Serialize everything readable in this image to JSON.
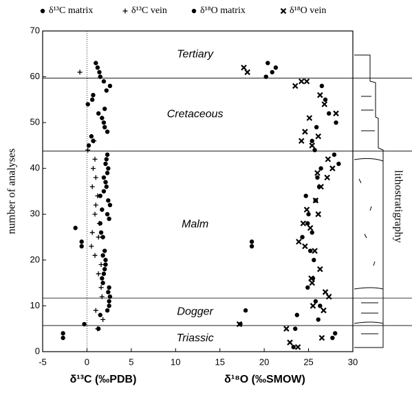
{
  "chart_data": {
    "type": "scatter",
    "xlabels": [
      "δ¹³C (‰PDB)",
      "δ¹⁸O (‰SMOW)"
    ],
    "ylabel": "number of analyses",
    "right_label": "lithostratigraphy",
    "xlim": [
      -5,
      30
    ],
    "xticks": [
      -5,
      0,
      5,
      10,
      15,
      20,
      25,
      30
    ],
    "ylim": [
      0,
      70
    ],
    "yticks": [
      0,
      10,
      20,
      30,
      40,
      50,
      60,
      70
    ],
    "boundaries": [
      59.7,
      43.8,
      11.7,
      5.7
    ],
    "periods": [
      "Tertiary",
      "Cretaceous",
      "Malm",
      "Dogger",
      "Triassic"
    ],
    "series": [
      {
        "name": "δ¹³C matrix",
        "marker": "circle",
        "color": "#000",
        "x": [
          -2.7,
          -2.7,
          1.3,
          -0.3,
          1.5,
          2.3,
          2.5,
          2.5,
          2.6,
          2.4,
          2.5,
          1.8,
          1.7,
          1.9,
          2.0,
          2.1,
          2.1,
          1.8,
          2.0,
          -0.6,
          -0.6,
          1.8,
          1.6,
          -1.3,
          1.5,
          2.5,
          2.3,
          1.7,
          2.6,
          2.4,
          1.5,
          1.9,
          2.2,
          2.1,
          1.9,
          2.3,
          2.4,
          2.1,
          2.2,
          2.3,
          0.2,
          0.7,
          0.5,
          2.3,
          2.0,
          1.9,
          1.7,
          1.3,
          2.0,
          0.1,
          0.6,
          0.7,
          2.2,
          2.6,
          1.9,
          1.5,
          1.4,
          1.2,
          1.0
        ],
        "y": [
          3,
          4,
          5,
          6,
          8,
          9,
          10,
          11,
          12,
          13,
          14,
          15,
          16,
          17,
          18,
          19,
          20,
          21,
          22,
          23,
          24,
          25,
          26,
          27,
          28,
          29,
          30,
          31,
          32,
          33,
          34,
          35,
          36,
          37,
          38,
          39,
          40,
          41,
          42,
          43,
          45,
          46,
          47,
          48,
          49,
          50,
          51,
          52,
          53,
          54,
          55,
          56,
          57,
          58,
          59,
          60,
          61,
          62,
          63
        ]
      },
      {
        "name": "δ¹³C vein",
        "marker": "plus",
        "color": "#000",
        "x": [
          -0.8,
          0.1,
          0.8,
          0.9,
          0.7,
          1.0,
          0.6,
          1.2,
          1.0,
          0.9,
          1.4,
          0.6,
          1.3,
          0.5,
          0.9,
          1.6,
          1.3,
          1.6,
          1.7,
          1.0,
          1.8,
          1.2
        ],
        "y": [
          61,
          44,
          46,
          42,
          40,
          38,
          36,
          34,
          32,
          30,
          28,
          26,
          25,
          23,
          21,
          19,
          17,
          14,
          12,
          9,
          7,
          5
        ]
      },
      {
        "name": "δ¹⁸O matrix",
        "marker": "circle",
        "color": "#000",
        "x": [
          17.9,
          17.3,
          18.6,
          18.6,
          20.4,
          21.3,
          20.9,
          20.2,
          23.5,
          23.3,
          23.7,
          24.7,
          24.9,
          25.0,
          25.4,
          25.6,
          25.5,
          25.8,
          26.1,
          26.3,
          25.7,
          25.4,
          25.9,
          26.5,
          26.9,
          27.3,
          28.1,
          28.0,
          27.7,
          28.4,
          27.9,
          26.0,
          26.2,
          25.8,
          26.4,
          25.2,
          24.9,
          24.3
        ],
        "y": [
          9,
          6,
          24,
          23,
          63,
          62,
          61,
          60,
          5,
          1,
          8,
          34,
          28,
          30,
          26,
          20,
          16,
          11,
          7,
          10,
          44,
          46,
          49,
          58,
          55,
          52,
          50,
          4,
          3,
          41,
          43,
          38,
          36,
          33,
          40,
          22,
          14,
          25
        ]
      },
      {
        "name": "δ¹⁸O vein",
        "marker": "cross",
        "color": "#000",
        "x": [
          17.7,
          18.1,
          17.2,
          22.5,
          22.9,
          23.8,
          24.2,
          24.8,
          23.5,
          24.6,
          24.2,
          25.4,
          25.1,
          26.1,
          26.8,
          26.3,
          28.1,
          27.2,
          27.7,
          27.1,
          26.0,
          26.4,
          25.8,
          24.8,
          26.1,
          24.4,
          25.2,
          24.6,
          23.9,
          25.7,
          26.3,
          25.4,
          26.9,
          27.3,
          25.5,
          26.7,
          25.3,
          26.5
        ],
        "y": [
          62,
          61,
          6,
          5,
          2,
          1,
          59,
          59,
          58,
          48,
          46,
          45,
          51,
          47,
          54,
          56,
          52,
          42,
          40,
          38,
          39,
          36,
          33,
          31,
          30,
          28,
          27,
          23,
          24,
          22,
          18,
          15,
          13,
          12,
          10,
          9,
          16,
          3
        ]
      }
    ]
  }
}
